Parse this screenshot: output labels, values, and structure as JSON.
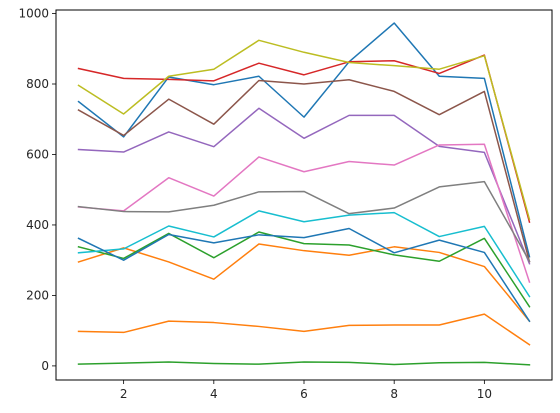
{
  "chart_data": {
    "type": "line",
    "title": "",
    "xlabel": "",
    "ylabel": "",
    "x": [
      1,
      2,
      3,
      4,
      5,
      6,
      7,
      8,
      9,
      10,
      11
    ],
    "xlim": [
      0.5,
      11.5
    ],
    "ylim": [
      -40,
      1010
    ],
    "xticks": [
      2,
      4,
      6,
      8,
      10
    ],
    "yticks": [
      0,
      200,
      400,
      600,
      800,
      1000
    ],
    "grid": false,
    "legend": "none",
    "series": [
      {
        "color": "#1f77b4",
        "values": [
          750,
          650,
          820,
          798,
          822,
          706,
          863,
          973,
          822,
          816,
          310
        ]
      },
      {
        "color": "#ff7f0e",
        "values": [
          295,
          335,
          295,
          246,
          346,
          327,
          314,
          338,
          322,
          282,
          127
        ]
      },
      {
        "color": "#2ca02c",
        "values": [
          338,
          305,
          376,
          307,
          380,
          347,
          343,
          315,
          297,
          362,
          168
        ]
      },
      {
        "color": "#d62728",
        "values": [
          844,
          816,
          813,
          809,
          859,
          826,
          863,
          866,
          830,
          882,
          408
        ]
      },
      {
        "color": "#9467bd",
        "values": [
          614,
          607,
          664,
          622,
          731,
          646,
          711,
          711,
          623,
          606,
          290
        ]
      },
      {
        "color": "#8c564b",
        "values": [
          726,
          654,
          757,
          686,
          810,
          800,
          812,
          779,
          713,
          779,
          296
        ]
      },
      {
        "color": "#e377c2",
        "values": [
          451,
          440,
          534,
          482,
          593,
          551,
          580,
          570,
          627,
          629,
          238
        ]
      },
      {
        "color": "#7f7f7f",
        "values": [
          452,
          438,
          437,
          456,
          494,
          495,
          432,
          448,
          508,
          523,
          297
        ]
      },
      {
        "color": "#bcbd22",
        "values": [
          796,
          715,
          822,
          842,
          924,
          890,
          861,
          852,
          842,
          880,
          416
        ]
      },
      {
        "color": "#17becf",
        "values": [
          321,
          332,
          397,
          366,
          440,
          409,
          428,
          435,
          367,
          396,
          197
        ]
      },
      {
        "color": "#1f77b4",
        "values": [
          362,
          300,
          373,
          349,
          372,
          364,
          390,
          321,
          357,
          322,
          127
        ]
      },
      {
        "color": "#ff7f0e",
        "values": [
          98,
          95,
          127,
          123,
          112,
          98,
          115,
          116,
          116,
          147,
          60
        ]
      },
      {
        "color": "#2ca02c",
        "values": [
          5,
          8,
          11,
          7,
          5,
          11,
          10,
          4,
          9,
          10,
          3
        ]
      }
    ]
  }
}
